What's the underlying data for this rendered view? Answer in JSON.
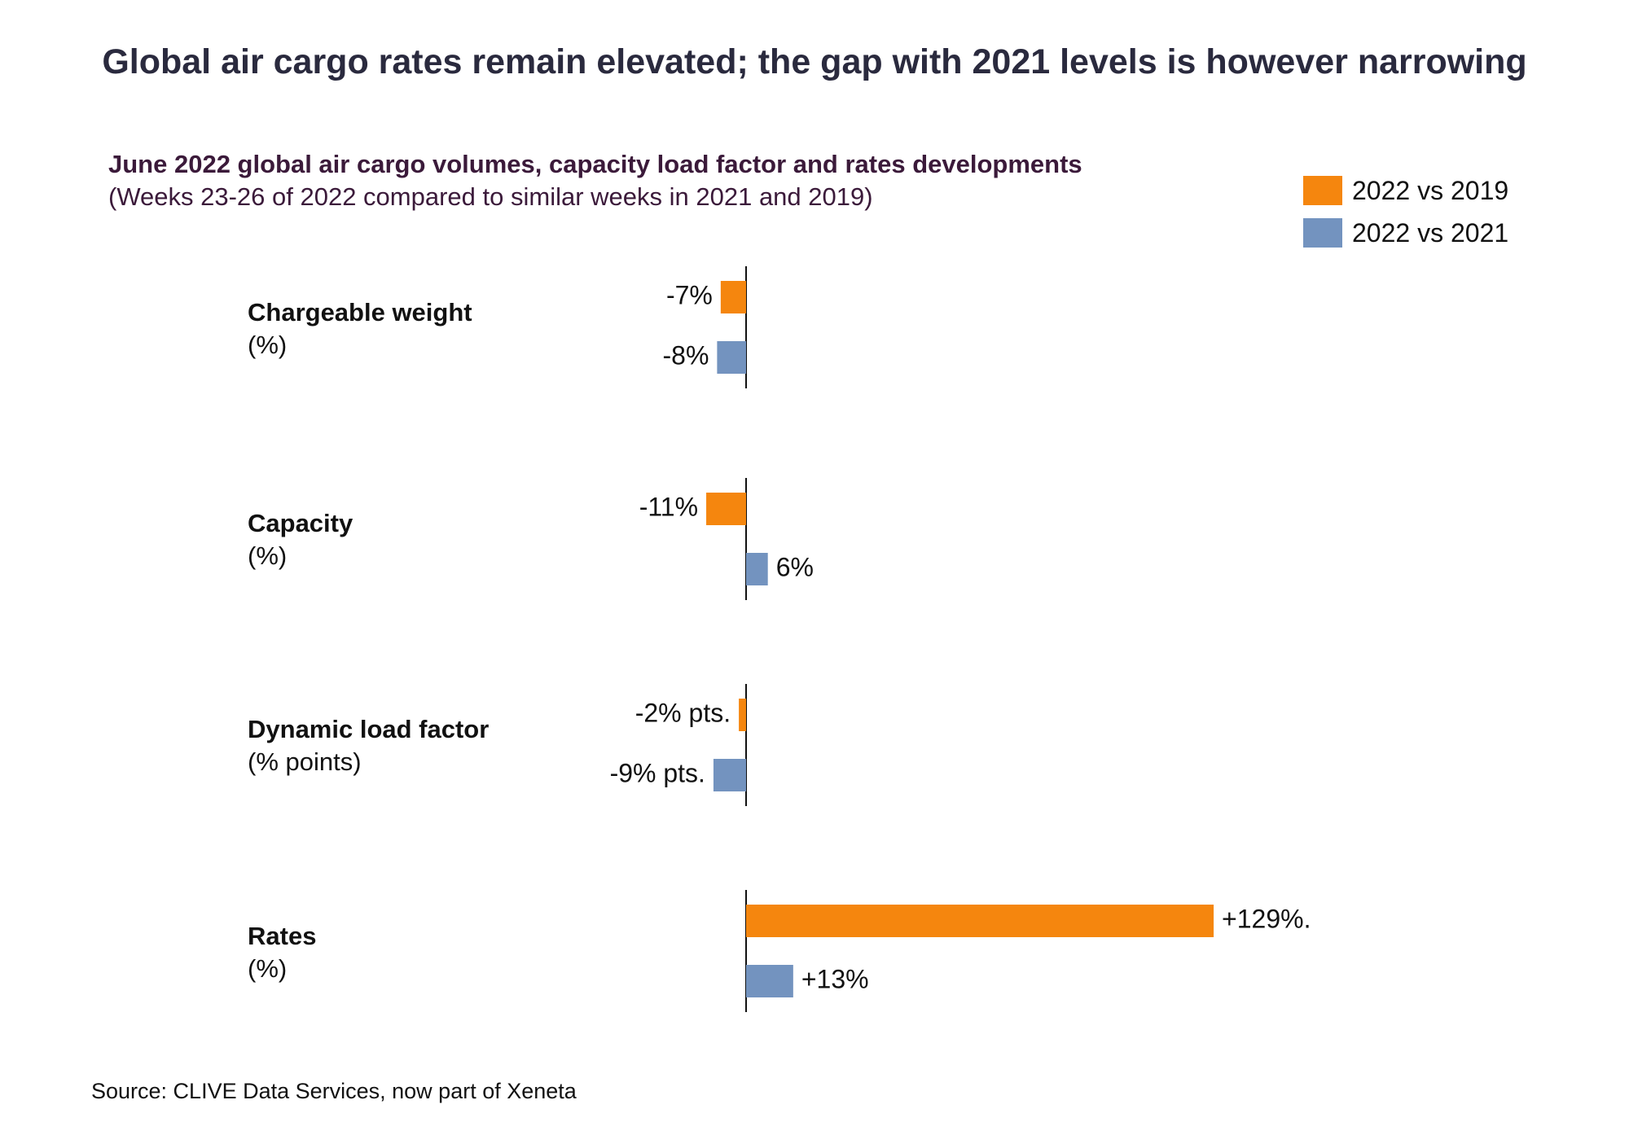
{
  "title": "Global air cargo rates remain elevated; the gap with 2021 levels is however narrowing",
  "source": "Source: CLIVE Data Services, now part of Xeneta",
  "colors": {
    "series_2019": "#f5860e",
    "series_2021": "#7393bf",
    "axis": "#111111"
  },
  "chart_data": {
    "type": "bar",
    "orientation": "horizontal",
    "title": "June 2022 global air cargo volumes, capacity load factor and rates developments",
    "subtitle": "(Weeks 23-26 of 2022 compared to similar weeks in 2021 and 2019)",
    "legend_position": "top-right",
    "categories": [
      {
        "name": "Chargeable weight",
        "unit": "(%)"
      },
      {
        "name": "Capacity",
        "unit": "(%)"
      },
      {
        "name": "Dynamic load factor",
        "unit": "(% points)"
      },
      {
        "name": "Rates",
        "unit": "(%)"
      }
    ],
    "series": [
      {
        "name": "2022 vs 2019",
        "values": [
          -7,
          -11,
          -2,
          129
        ],
        "labels": [
          "-7%",
          "-11%",
          "-2% pts.",
          "+129%."
        ]
      },
      {
        "name": "2022 vs 2021",
        "values": [
          -8,
          6,
          -9,
          13
        ],
        "labels": [
          "-8%",
          "6%",
          "-9% pts.",
          "+13%"
        ]
      }
    ]
  }
}
